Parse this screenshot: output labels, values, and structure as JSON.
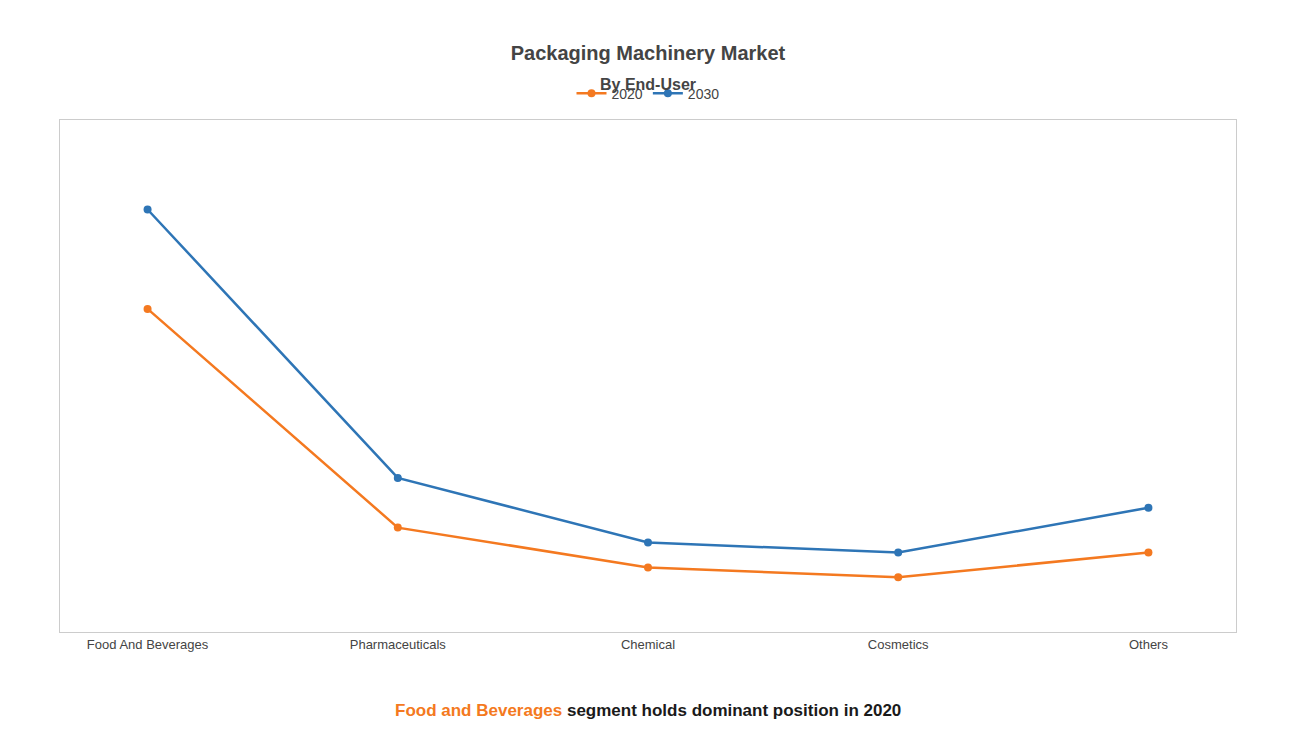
{
  "chart_data": {
    "type": "line",
    "title": "Packaging Machinery Market",
    "subtitle": "By End-User",
    "categories": [
      "Food And Beverages",
      "Pharmaceuticals",
      "Chemical",
      "Cosmetics",
      "Others"
    ],
    "series": [
      {
        "name": "2020",
        "color": "#F47920",
        "values": [
          62,
          18,
          10,
          8,
          13
        ],
        "marker": "circle",
        "line_style": "solid"
      },
      {
        "name": "2030",
        "color": "#2E75B6",
        "values": [
          82,
          28,
          15,
          13,
          22
        ],
        "marker": "circle",
        "line_style": "solid"
      }
    ],
    "ylim": [
      -3,
      100
    ],
    "yticks": [],
    "tick_labels": "x",
    "grid": false,
    "legend": "top",
    "annotations": [
      {
        "text": "Food and Beverages",
        "color": "#F47920"
      },
      {
        "text": " segment holds dominant position in 2020",
        "color": "#1a1a1a"
      }
    ]
  }
}
